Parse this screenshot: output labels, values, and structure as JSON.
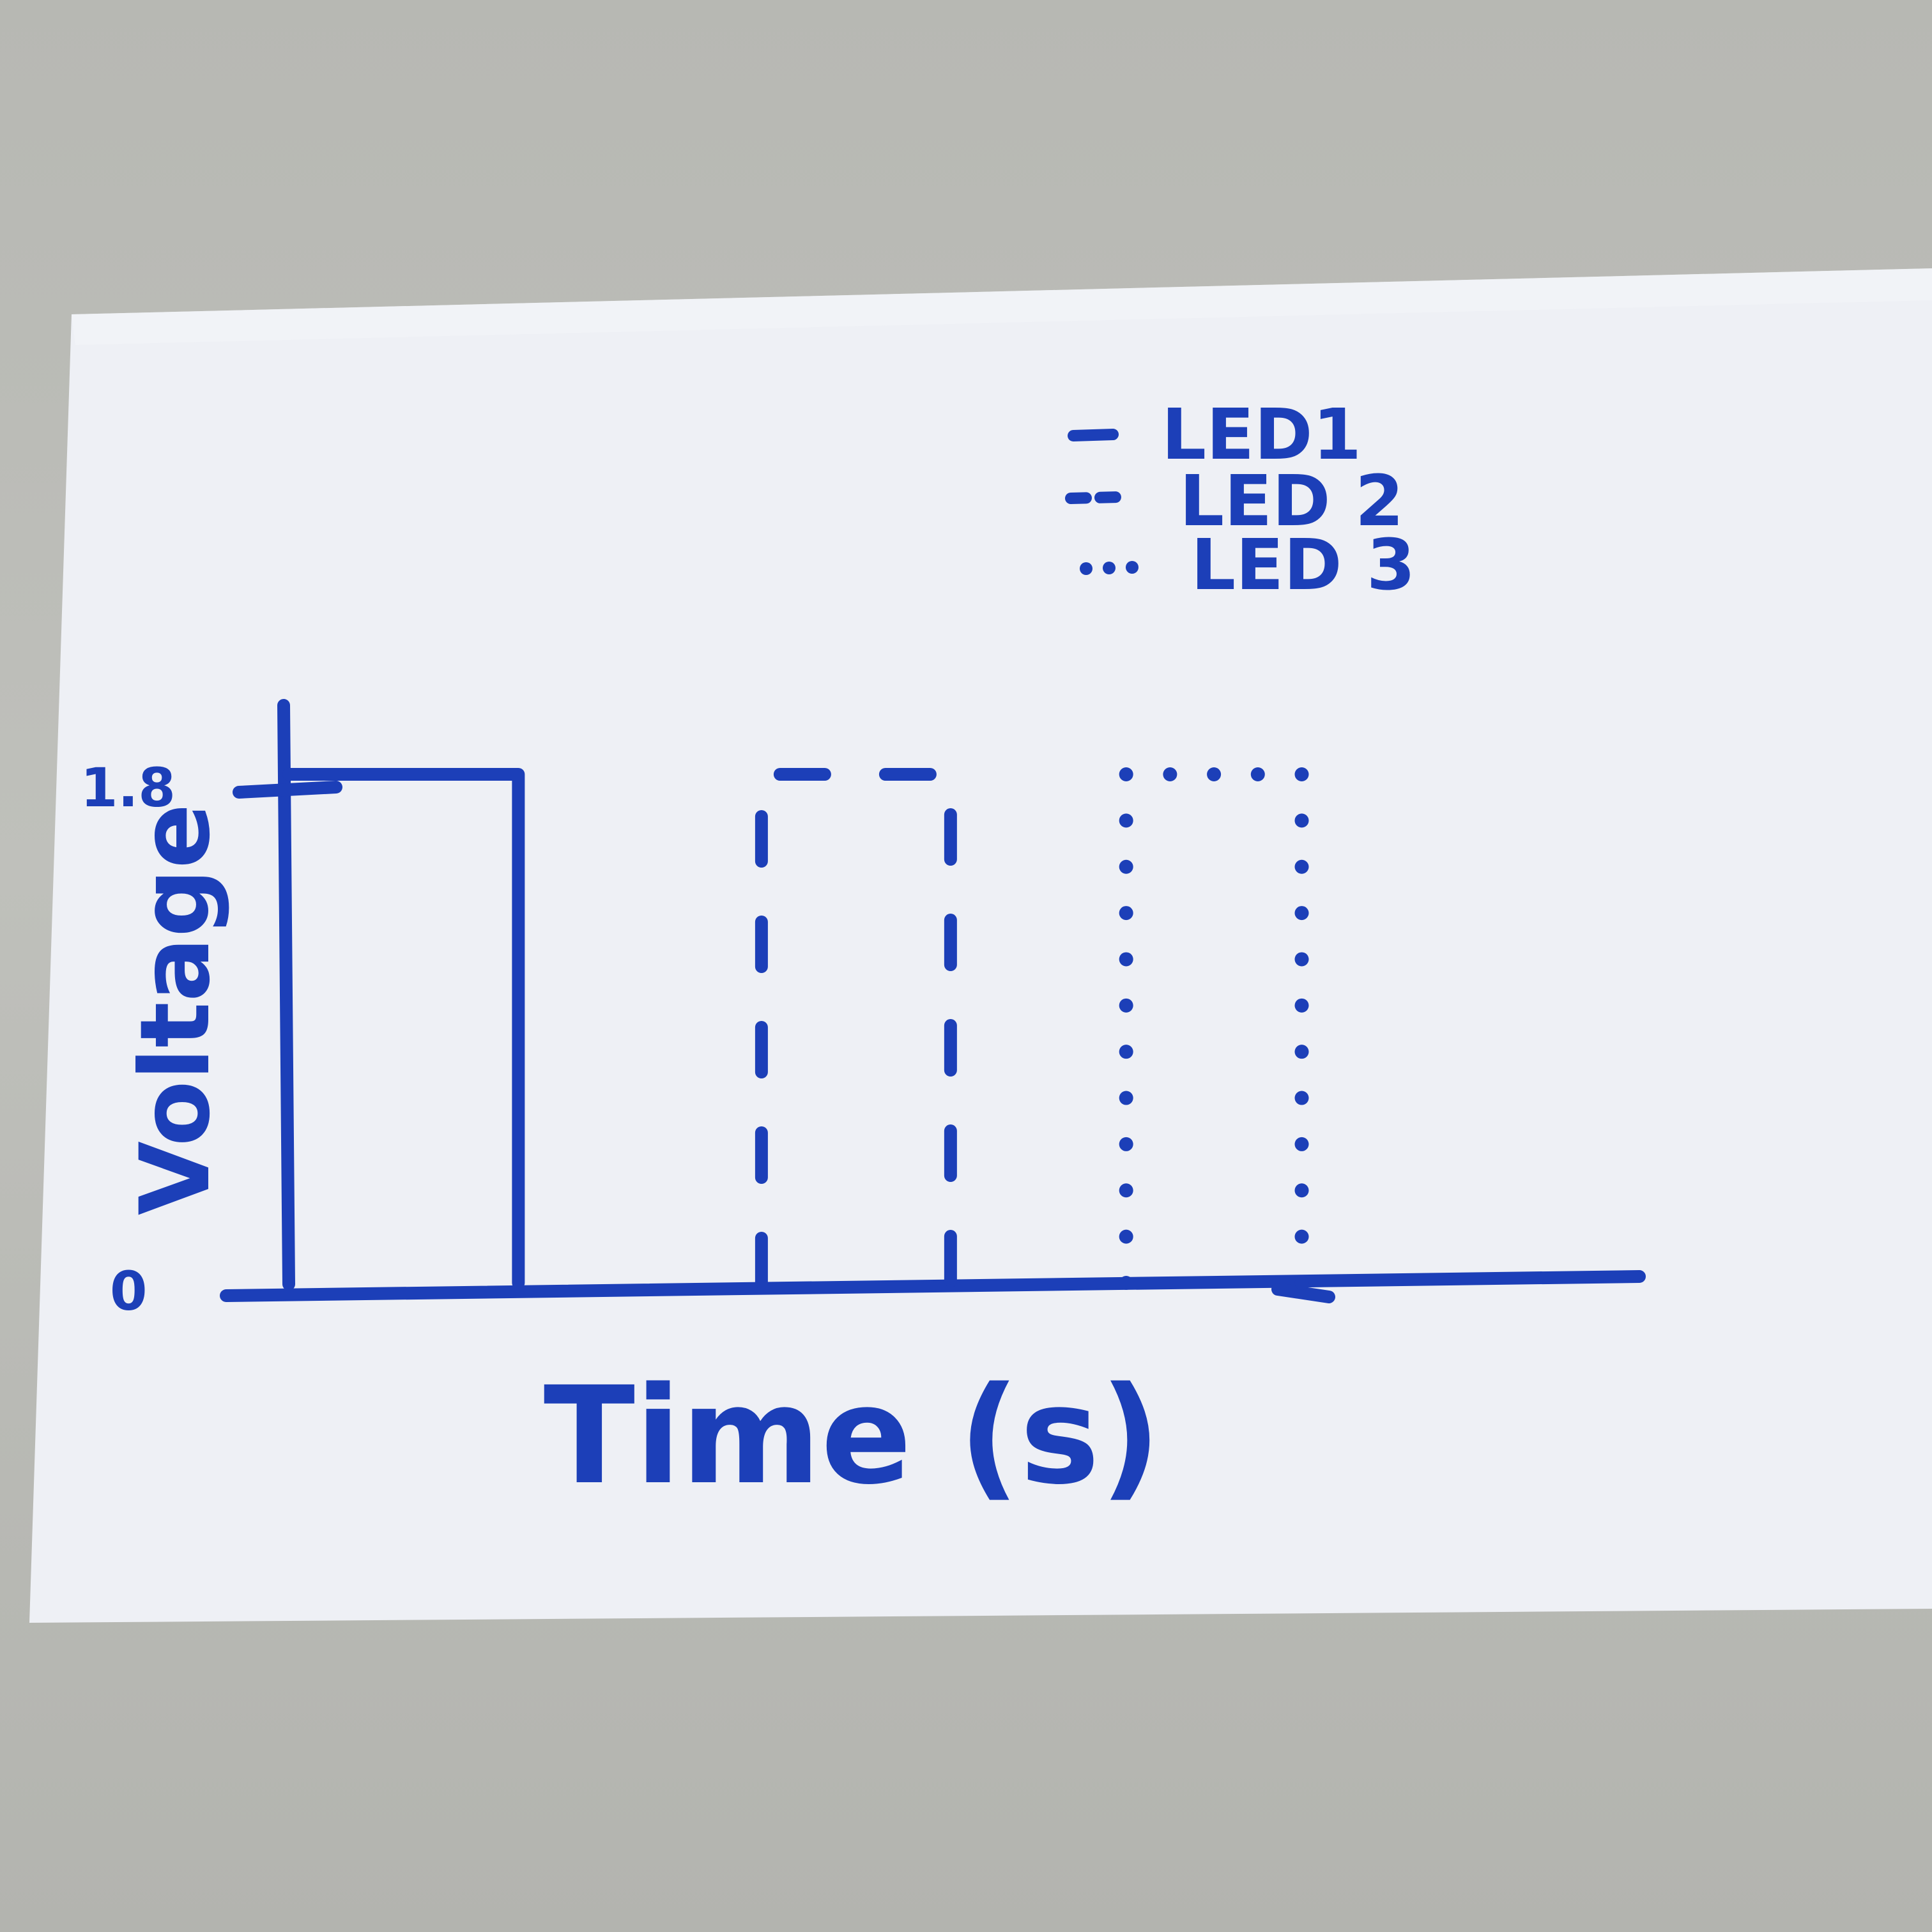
{
  "chart_data": {
    "type": "line",
    "title": "",
    "xlabel": "Time (s)",
    "ylabel": "Voltage",
    "y_ticks": [
      "0",
      "1.8"
    ],
    "ylim": [
      0,
      1.8
    ],
    "xlim": [
      0,
      10
    ],
    "grid": false,
    "legend_placement": "top-right",
    "series": [
      {
        "name": "LED1",
        "style": "solid",
        "x": [
          0,
          0.5,
          1.7,
          1.7
        ],
        "y": [
          1.8,
          1.8,
          1.8,
          0
        ]
      },
      {
        "name": "LED 2",
        "style": "dashed",
        "x": [
          3.5,
          3.5,
          4.9,
          4.9
        ],
        "y": [
          0,
          1.8,
          1.8,
          0
        ]
      },
      {
        "name": "LED 3",
        "style": "dotted",
        "x": [
          6.2,
          6.2,
          7.5,
          7.5
        ],
        "y": [
          0,
          1.8,
          1.8,
          0
        ]
      }
    ]
  },
  "colors": {
    "ink": "#1c3fb8",
    "paper": "#eef0f5",
    "background": "#b9bab6"
  }
}
